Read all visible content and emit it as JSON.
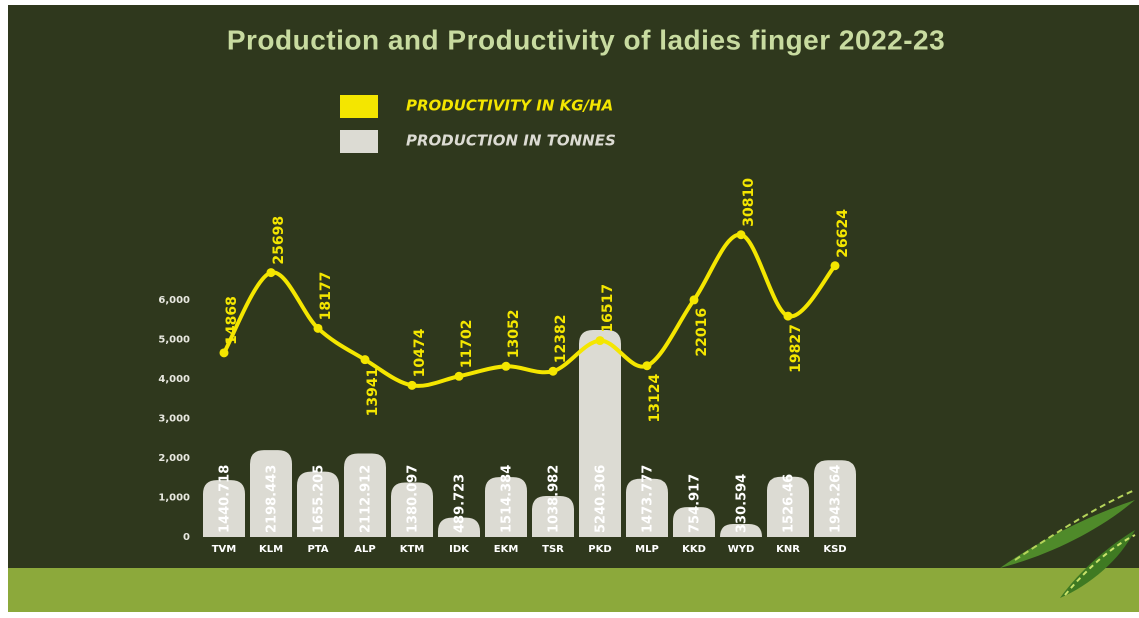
{
  "chart_data": {
    "type": "bar",
    "title": "Production and Productivity of ladies finger 2022-23",
    "categories": [
      "TVM",
      "KLM",
      "PTA",
      "ALP",
      "KTM",
      "IDK",
      "EKM",
      "TSR",
      "PKD",
      "MLP",
      "KKD",
      "WYD",
      "KNR",
      "KSD"
    ],
    "series": [
      {
        "name": "PRODUCTIVITY IN KG/HA",
        "color": "#f4e600",
        "type": "line",
        "axis": "y2",
        "values": [
          14868,
          25698,
          18177,
          13941,
          10474,
          11702,
          13052,
          12382,
          16517,
          13124,
          22016,
          30810,
          19827,
          26624
        ]
      },
      {
        "name": "PRODUCTION IN TONNES",
        "color": "#dcdbd3",
        "type": "bar",
        "values": [
          1440.718,
          2198.443,
          1655.205,
          2112.912,
          1380.097,
          489.723,
          1514.384,
          1038.982,
          5240.306,
          1473.777,
          754.917,
          330.594,
          1526.46,
          1943.264
        ]
      }
    ],
    "ylim": [
      0,
      6000
    ],
    "yticks": [
      0,
      {
        "value": 1000,
        "label": "1,000"
      },
      {
        "value": 2000,
        "label": "2,000"
      },
      {
        "value": 3000,
        "label": "3,000"
      },
      {
        "value": 4000,
        "label": "4,000"
      },
      {
        "value": 5000,
        "label": "5,000"
      },
      {
        "value": 6000,
        "label": "6,000"
      }
    ],
    "y2lim": [
      -10000,
      22000
    ],
    "grid": false
  }
}
